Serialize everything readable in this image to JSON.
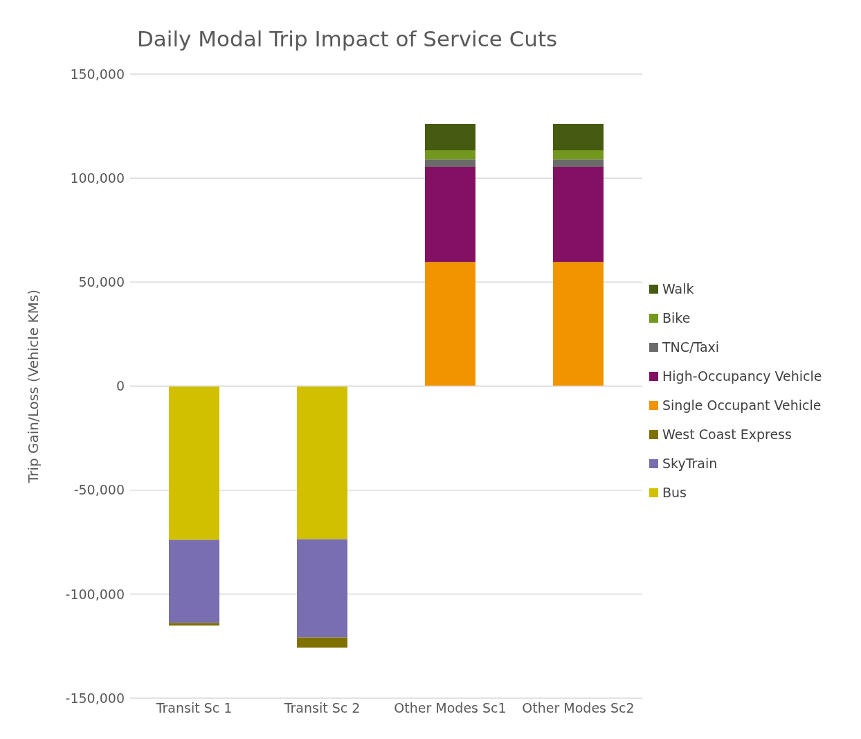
{
  "chart_data": {
    "type": "bar",
    "title": "Daily Modal Trip Impact of Service Cuts",
    "ylabel": "Trip Gain/Loss (Vehicle KMs)",
    "categories": [
      "Transit Sc 1",
      "Transit Sc 2",
      "Other Modes Sc1",
      "Other Modes Sc2"
    ],
    "stacked": true,
    "series": [
      {
        "name": "Bus",
        "color": "#d1c000",
        "values": [
          -73900,
          -73600,
          null,
          null
        ]
      },
      {
        "name": "SkyTrain",
        "color": "#786eb0",
        "values": [
          -40000,
          -47300,
          null,
          null
        ]
      },
      {
        "name": "West Coast Express",
        "color": "#7f7000",
        "values": [
          -1200,
          -4800,
          null,
          null
        ]
      },
      {
        "name": "Single Occupant Vehicle",
        "color": "#f29400",
        "values": [
          null,
          null,
          59700,
          59700
        ]
      },
      {
        "name": "High-Occupancy Vehicle",
        "color": "#841063",
        "values": [
          null,
          null,
          45700,
          45700
        ]
      },
      {
        "name": "TNC/Taxi",
        "color": "#6a6a6a",
        "values": [
          null,
          null,
          3600,
          3600
        ]
      },
      {
        "name": "Bike",
        "color": "#73981e",
        "values": [
          null,
          null,
          4400,
          4400
        ]
      },
      {
        "name": "Walk",
        "color": "#465a11",
        "values": [
          null,
          null,
          12600,
          12600
        ]
      }
    ],
    "ylim": [
      -150000,
      150000
    ],
    "yticks": [
      {
        "value": -150000,
        "label": "-150,000"
      },
      {
        "value": -100000,
        "label": "-100,000"
      },
      {
        "value": -50000,
        "label": "-50,000"
      },
      0,
      {
        "value": 50000,
        "label": "50,000"
      },
      {
        "value": 100000,
        "label": "100,000"
      },
      {
        "value": 150000,
        "label": "150,000"
      }
    ],
    "grid": "y",
    "legend": "right"
  }
}
